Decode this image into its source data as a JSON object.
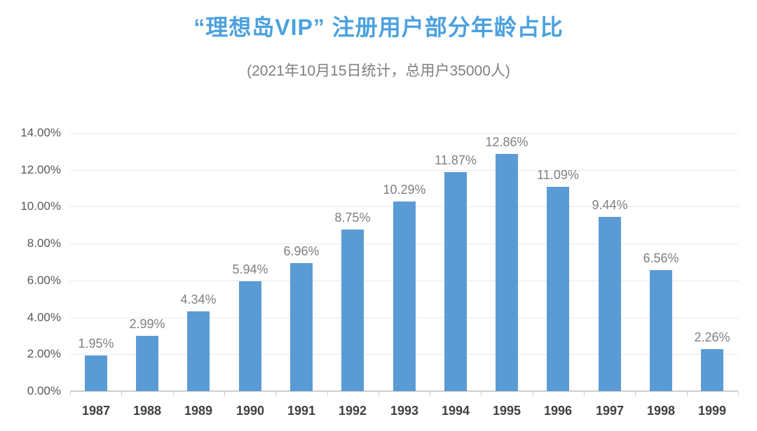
{
  "chart_data": {
    "type": "bar",
    "title": "“理想岛VIP” 注册用户部分年龄占比",
    "subtitle": "(2021年10月15日统计，总用户35000人)",
    "categories": [
      "1987",
      "1988",
      "1989",
      "1990",
      "1991",
      "1992",
      "1993",
      "1994",
      "1995",
      "1996",
      "1997",
      "1998",
      "1999"
    ],
    "values": [
      1.95,
      2.99,
      4.34,
      5.94,
      6.96,
      8.75,
      10.29,
      11.87,
      12.86,
      11.09,
      9.44,
      6.56,
      2.26
    ],
    "data_labels": [
      "1.95%",
      "2.99%",
      "4.34%",
      "5.94%",
      "6.96%",
      "8.75%",
      "10.29%",
      "11.87%",
      "12.86%",
      "11.09%",
      "9.44%",
      "6.56%",
      "2.26%"
    ],
    "xlabel": "",
    "ylabel": "",
    "ylim": [
      0,
      14
    ],
    "ytick_step": 2,
    "ytick_labels": [
      "0.00%",
      "2.00%",
      "4.00%",
      "6.00%",
      "8.00%",
      "10.00%",
      "12.00%",
      "14.00%"
    ],
    "grid": true,
    "legend": false,
    "colors": {
      "bar": "#5B9BD5",
      "title": "#4BA1DE",
      "subtitle": "#7F7F7F",
      "data_label": "#7F7F7F",
      "y_tick_label": "#595959",
      "x_tick_label": "#404040",
      "gridline": "#E8E8E8",
      "axis": "#CDCDCD"
    }
  }
}
